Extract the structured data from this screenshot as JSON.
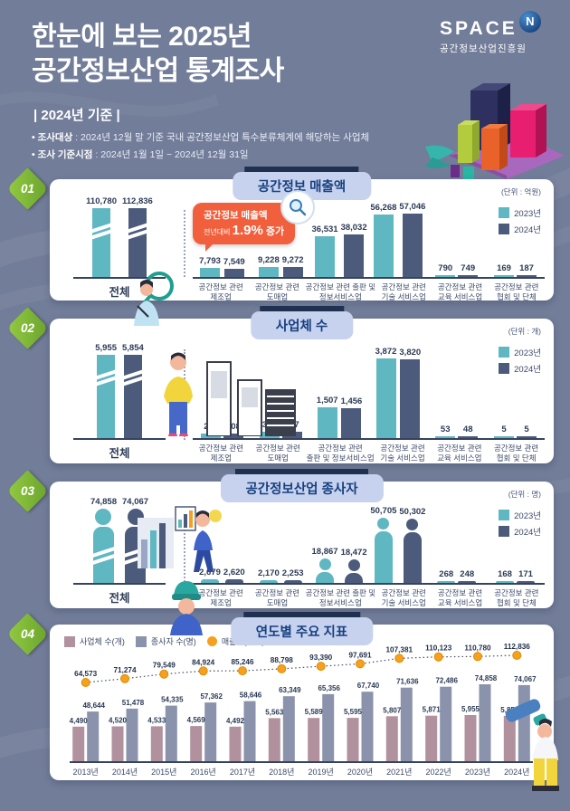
{
  "header": {
    "title_line1": "한눈에 보는 2025년",
    "title_line2": "공간정보산업 통계조사",
    "subtitle": "| 2024년 기준 |",
    "bullets": [
      {
        "label": "• 조사대상",
        "text": " :  2024년 12월 말 기준 국내 공간정보산업 특수분류체계에 해당하는 사업체"
      },
      {
        "label": "• 조사 기준시점",
        "text": " : 2024년 1월 1일 ~ 2024년 12월 31일"
      }
    ],
    "logo": {
      "brand": "SPACE",
      "mark": "N",
      "org": "공간정보산업진흥원"
    }
  },
  "legend": {
    "y2023": "2023년",
    "y2024": "2024년"
  },
  "callout": {
    "line1": "공간정보 매출액",
    "prefix": "전년대비 ",
    "value": "1.9%",
    "suffix": " 증가"
  },
  "sections": [
    {
      "num": "01",
      "title": "공간정보 매출액",
      "unit": "(단위 : 억원)",
      "total_label": "전체"
    },
    {
      "num": "02",
      "title": "사업체 수",
      "unit": "(단위 : 개)",
      "total_label": "전체"
    },
    {
      "num": "03",
      "title": "공간정보산업 종사자",
      "unit": "(단위 : 명)",
      "total_label": "전체"
    },
    {
      "num": "04",
      "title": "연도별 주요 지표"
    }
  ],
  "colors": {
    "y2023": "#5fb7c2",
    "y2024": "#4c5b7c",
    "business": "#b2919e",
    "workers": "#8a93ab",
    "revenue": "#f5a01e",
    "callout": "#f15f3c"
  },
  "chart_data": [
    {
      "type": "bar",
      "title": "공간정보 매출액",
      "unit": "억원",
      "legend": [
        "2023년",
        "2024년"
      ],
      "legend_position": "top-right",
      "total": {
        "label": "전체",
        "v2023": 110780,
        "v2024": 112836
      },
      "categories": [
        [
          "공간정보 관련",
          "제조업"
        ],
        [
          "공간정보 관련",
          "도매업"
        ],
        [
          "공간정보 관련 출판 및",
          "정보서비스업"
        ],
        [
          "공간정보 관련",
          "기술 서비스업"
        ],
        [
          "공간정보 관련",
          "교육 서비스업"
        ],
        [
          "공간정보 관련",
          "협회 및 단체"
        ]
      ],
      "series": [
        {
          "name": "2023년",
          "values": [
            7793,
            9228,
            36531,
            56268,
            790,
            169
          ]
        },
        {
          "name": "2024년",
          "values": [
            7549,
            9272,
            38032,
            57046,
            749,
            187
          ]
        }
      ],
      "annotation": "공간정보 매출액 전년대비 1.9% 증가"
    },
    {
      "type": "bar",
      "title": "사업체 수",
      "unit": "개",
      "legend": [
        "2023년",
        "2024년"
      ],
      "legend_position": "top-right",
      "total": {
        "label": "전체",
        "v2023": 5955,
        "v2024": 5854
      },
      "categories": [
        [
          "공간정보 관련",
          "제조업"
        ],
        [
          "공간정보 관련",
          "도매업"
        ],
        [
          "공간정보 관련",
          "출판 및 정보서비스업"
        ],
        [
          "공간정보 관련",
          "기술 서비스업"
        ],
        [
          "공간정보 관련",
          "교육 서비스업"
        ],
        [
          "공간정보 관련",
          "협회 및 단체"
        ]
      ],
      "series": [
        {
          "name": "2023년",
          "values": [
            211,
            307,
            1507,
            3872,
            53,
            5
          ]
        },
        {
          "name": "2024년",
          "values": [
            208,
            317,
            1456,
            3820,
            48,
            5
          ]
        }
      ]
    },
    {
      "type": "pictorial-bar",
      "title": "공간정보산업 종사자",
      "unit": "명",
      "legend": [
        "2023년",
        "2024년"
      ],
      "legend_position": "top-right",
      "total": {
        "label": "전체",
        "v2023": 74858,
        "v2024": 74067
      },
      "categories": [
        [
          "공간정보 관련",
          "제조업"
        ],
        [
          "공간정보 관련",
          "도매업"
        ],
        [
          "공간정보 관련 출판 및",
          "정보서비스업"
        ],
        [
          "공간정보 관련",
          "기술 서비스업"
        ],
        [
          "공간정보 관련",
          "교육 서비스업"
        ],
        [
          "공간정보 관련",
          "협회 및 단체"
        ]
      ],
      "series": [
        {
          "name": "2023년",
          "values": [
            2679,
            2170,
            18867,
            50705,
            268,
            168
          ]
        },
        {
          "name": "2024년",
          "values": [
            2620,
            2253,
            18472,
            50302,
            248,
            171
          ]
        }
      ]
    },
    {
      "type": "bar+line",
      "title": "연도별 주요 지표",
      "legend_position": "top-left",
      "categories": [
        "2013년",
        "2014년",
        "2015년",
        "2016년",
        "2017년",
        "2018년",
        "2019년",
        "2020년",
        "2021년",
        "2022년",
        "2023년",
        "2024년"
      ],
      "series": [
        {
          "name": "사업체 수(개)",
          "kind": "bar",
          "values": [
            4490,
            4520,
            4533,
            4569,
            4492,
            5563,
            5589,
            5595,
            5807,
            5871,
            5955,
            5854
          ]
        },
        {
          "name": "종사자 수(명)",
          "kind": "bar",
          "values": [
            48644,
            51478,
            54335,
            57362,
            58646,
            63349,
            65356,
            67740,
            71636,
            72486,
            74858,
            74067
          ]
        },
        {
          "name": "매출액(억원)",
          "kind": "line",
          "values": [
            64573,
            71274,
            79549,
            84924,
            85246,
            88798,
            93390,
            97691,
            107381,
            110123,
            110780,
            112836
          ]
        }
      ]
    }
  ]
}
